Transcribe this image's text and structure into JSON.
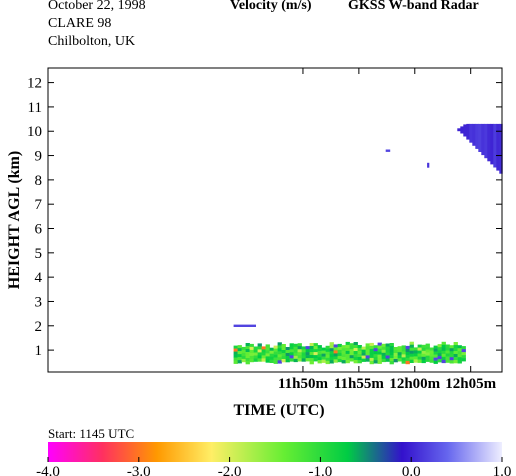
{
  "header": {
    "date": "October  22, 1998",
    "campaign": "CLARE 98",
    "site": "Chilbolton, UK",
    "quantity": "Velocity (m/s)",
    "instrument": "GKSS  W-band Radar"
  },
  "start_label": "Start: 1145 UTC",
  "chart_data": {
    "type": "heatmap",
    "title": "Velocity (m/s)",
    "xlabel": "TIME (UTC)",
    "ylabel": "HEIGHT AGL (km)",
    "xlim": [
      687.2,
      727.8
    ],
    "ylim": [
      0.1,
      12.6
    ],
    "x_ticks": [
      {
        "value": 710,
        "label": "11h50m"
      },
      {
        "value": 715,
        "label": "11h55m"
      },
      {
        "value": 720,
        "label": "12h00m"
      },
      {
        "value": 725,
        "label": "12h05m"
      }
    ],
    "y_ticks": [
      1,
      2,
      3,
      4,
      5,
      6,
      7,
      8,
      9,
      10,
      11,
      12
    ],
    "colorbar": {
      "min": -4.0,
      "max": 1.0,
      "tick_values": [
        -4.0,
        -3.0,
        -2.0,
        -1.0,
        0.0,
        1.0
      ],
      "tick_labels": [
        "-4.0",
        "-3.0",
        "-2.0",
        "-1.0",
        "0.0",
        "1.0"
      ],
      "stops": [
        {
          "value": -4.0,
          "color": "#ff00ff"
        },
        {
          "value": -3.4,
          "color": "#ff3060"
        },
        {
          "value": -2.8,
          "color": "#ff9900"
        },
        {
          "value": -2.2,
          "color": "#ffee66"
        },
        {
          "value": -1.4,
          "color": "#66ee33"
        },
        {
          "value": -0.7,
          "color": "#00cc44"
        },
        {
          "value": -0.1,
          "color": "#3311cc"
        },
        {
          "value": 0.4,
          "color": "#6666ee"
        },
        {
          "value": 1.0,
          "color": "#eeeeff"
        }
      ]
    },
    "features": [
      {
        "name": "low-cloud-layer",
        "x_range": [
          703.8,
          724.3
        ],
        "height_range": [
          0.55,
          1.35
        ],
        "velocity": -1.0
      },
      {
        "name": "cirrus-cloud",
        "x_range": [
          723.8,
          727.8
        ],
        "height_range": [
          8.0,
          10.3
        ],
        "velocity": 0.1
      },
      {
        "name": "echo-2km",
        "x_range": [
          703.8,
          705.8
        ],
        "height_range": [
          1.95,
          2.05
        ],
        "velocity": 0.2
      },
      {
        "name": "echo-9.2km",
        "x_range": [
          717.4,
          717.8
        ],
        "height_range": [
          9.15,
          9.25
        ],
        "velocity": 0.2
      },
      {
        "name": "echo-8.6km",
        "x_range": [
          721.1,
          721.3
        ],
        "height_range": [
          8.5,
          8.7
        ],
        "velocity": 0.1
      }
    ]
  }
}
